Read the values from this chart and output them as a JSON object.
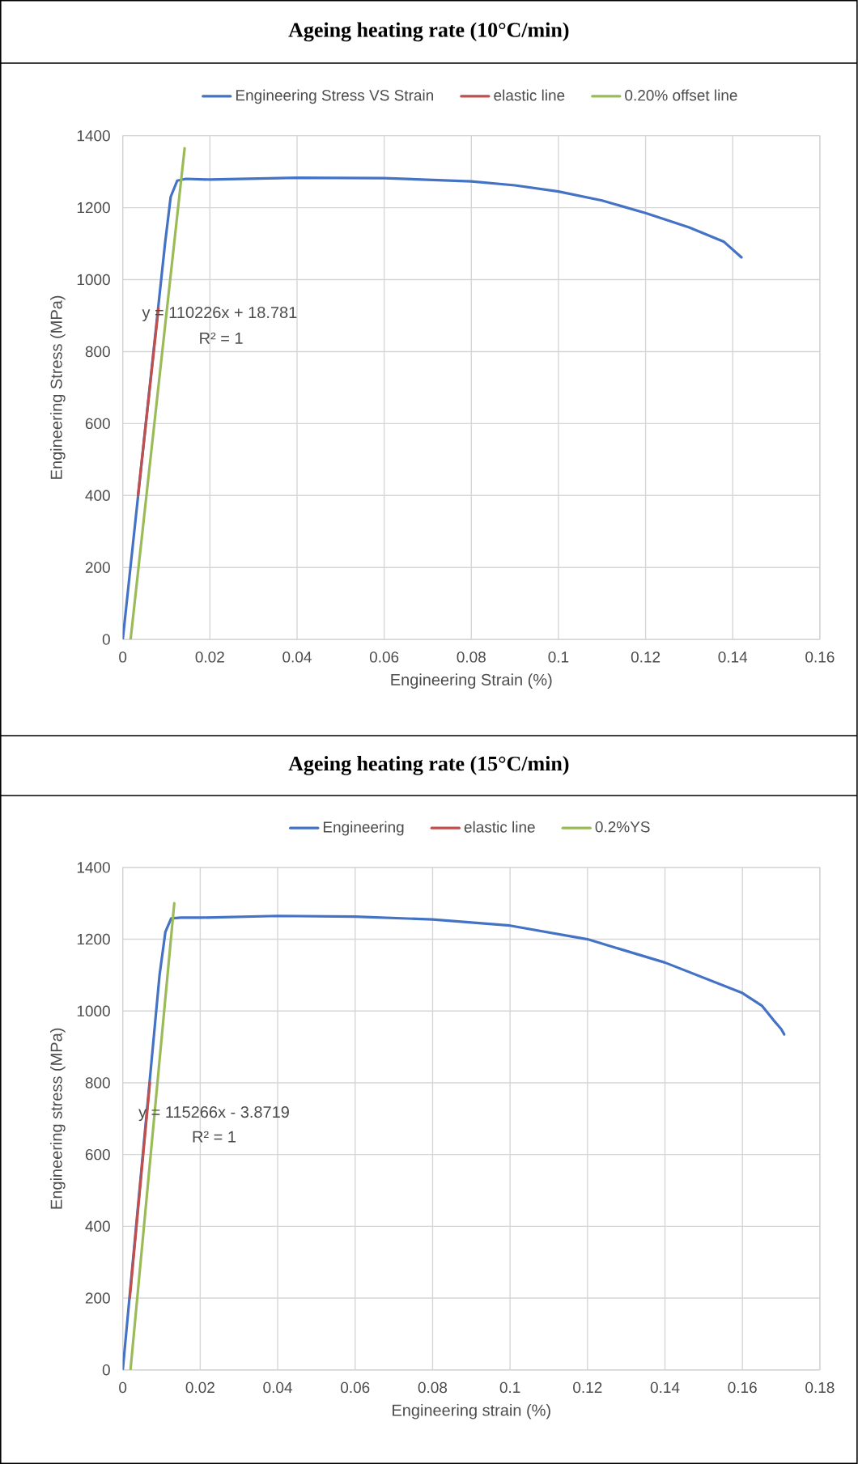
{
  "chart_data": [
    {
      "type": "line",
      "title": "Ageing heating rate (10°C/min)",
      "xlabel": "Engineering Strain (%)",
      "ylabel": "Engineering Stress (MPa)",
      "xlim": [
        0,
        0.16
      ],
      "ylim": [
        0,
        1400
      ],
      "xticks": [
        0,
        0.02,
        0.04,
        0.06,
        0.08,
        0.1,
        0.12,
        0.14,
        0.16
      ],
      "yticks": [
        0,
        200,
        400,
        600,
        800,
        1000,
        1200,
        1400
      ],
      "grid": true,
      "legend": "top",
      "annotations": [
        "y = 110226x + 18.781",
        "R² = 1"
      ],
      "series": [
        {
          "name": "Engineering Stress VS Strain",
          "color": "#4472c4",
          "x": [
            0,
            0.0097,
            0.011,
            0.0125,
            0.0145,
            0.02,
            0.04,
            0.06,
            0.08,
            0.09,
            0.1,
            0.11,
            0.12,
            0.13,
            0.138,
            0.142
          ],
          "values": [
            0,
            1100,
            1230,
            1275,
            1280,
            1278,
            1283,
            1282,
            1273,
            1262,
            1245,
            1220,
            1185,
            1145,
            1105,
            1062
          ]
        },
        {
          "name": "elastic line",
          "color": "#c0504d",
          "x": [
            0.0035,
            0.0082
          ],
          "values": [
            400,
            920
          ]
        },
        {
          "name": "0.20% offset line",
          "color": "#9bbb59",
          "x": [
            0.0018,
            0.0142
          ],
          "values": [
            0,
            1365
          ]
        }
      ]
    },
    {
      "type": "line",
      "title": "Ageing heating rate (15°C/min)",
      "xlabel": "Engineering strain (%)",
      "ylabel": "Engineering stress (MPa)",
      "xlim": [
        0,
        0.18
      ],
      "ylim": [
        0,
        1400
      ],
      "xticks": [
        0,
        0.02,
        0.04,
        0.06,
        0.08,
        0.1,
        0.12,
        0.14,
        0.16,
        0.18
      ],
      "yticks": [
        0,
        200,
        400,
        600,
        800,
        1000,
        1200,
        1400
      ],
      "grid": true,
      "legend": "top",
      "annotations": [
        "y = 115266x - 3.8719",
        "R² = 1"
      ],
      "series": [
        {
          "name": "Engineering",
          "color": "#4472c4",
          "x": [
            0,
            0.0095,
            0.011,
            0.0125,
            0.015,
            0.02,
            0.04,
            0.06,
            0.08,
            0.1,
            0.12,
            0.14,
            0.16,
            0.165,
            0.168,
            0.17,
            0.1708
          ],
          "values": [
            0,
            1100,
            1220,
            1258,
            1260,
            1260,
            1265,
            1263,
            1255,
            1238,
            1200,
            1135,
            1050,
            1015,
            975,
            950,
            935
          ]
        },
        {
          "name": "elastic line",
          "color": "#c0504d",
          "x": [
            0.0018,
            0.007
          ],
          "values": [
            200,
            800
          ]
        },
        {
          "name": "0.2%YS",
          "color": "#9bbb59",
          "x": [
            0.002,
            0.0133
          ],
          "values": [
            0,
            1300
          ]
        }
      ]
    }
  ]
}
